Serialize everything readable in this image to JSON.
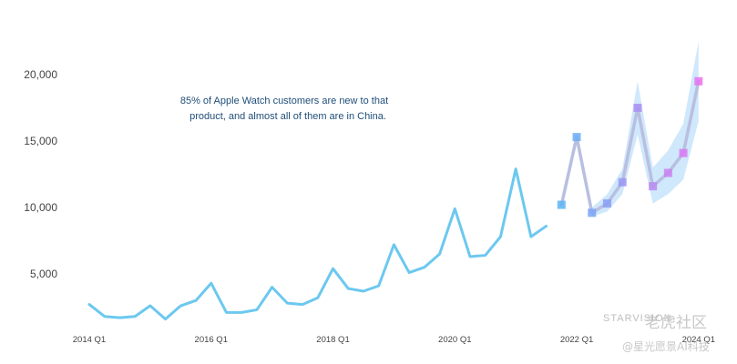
{
  "chart_data": {
    "type": "line",
    "title": "",
    "xlabel": "",
    "ylabel": "",
    "ylim": [
      1000,
      23000
    ],
    "yticks": [
      {
        "value": 5000,
        "label": "5,000"
      },
      {
        "value": 10000,
        "label": "10,000"
      },
      {
        "value": 15000,
        "label": "15,000"
      },
      {
        "value": 20000,
        "label": "20,000"
      }
    ],
    "xticks": [
      {
        "index": 0,
        "label": "2014 Q1"
      },
      {
        "index": 8,
        "label": "2016 Q1"
      },
      {
        "index": 16,
        "label": "2018 Q1"
      },
      {
        "index": 24,
        "label": "2020 Q1"
      },
      {
        "index": 32,
        "label": "2022 Q1"
      },
      {
        "index": 40,
        "label": "2024 Q1"
      }
    ],
    "annotation": [
      "85% of Apple Watch customers are new to that",
      "product, and almost all of them are in China."
    ],
    "colors": {
      "actual": "#6cc8ef",
      "forecast_line": "#b9bfe0",
      "band": "#bfe0fb",
      "marker_low": "#5bb4f5",
      "marker_high": "#e872f0"
    },
    "series": [
      {
        "role": "actual",
        "start_index": 0,
        "values": [
          2700,
          1800,
          1700,
          1800,
          2600,
          1600,
          2600,
          3000,
          4300,
          2100,
          2100,
          2300,
          4000,
          2800,
          2700,
          3200,
          5400,
          3900,
          3700,
          4100,
          7200,
          5100,
          5500,
          6500,
          9900,
          6300,
          6400,
          7800,
          12900,
          7800,
          8600
        ]
      },
      {
        "role": "forecast",
        "start_index": 31,
        "values": [
          10200,
          15300,
          9600,
          10300,
          11900,
          17500,
          11600,
          12600,
          14100,
          19500
        ],
        "lower": [
          10200,
          14900,
          9300,
          9700,
          11000,
          15500,
          10300,
          11000,
          12100,
          16500
        ],
        "upper": [
          10200,
          15700,
          10000,
          11000,
          12900,
          19500,
          13000,
          14300,
          16300,
          22500
        ]
      }
    ]
  },
  "watermark": {
    "brand": "STARVISION",
    "site": "老虎社区",
    "credit": "@星光愿景AI科技"
  }
}
